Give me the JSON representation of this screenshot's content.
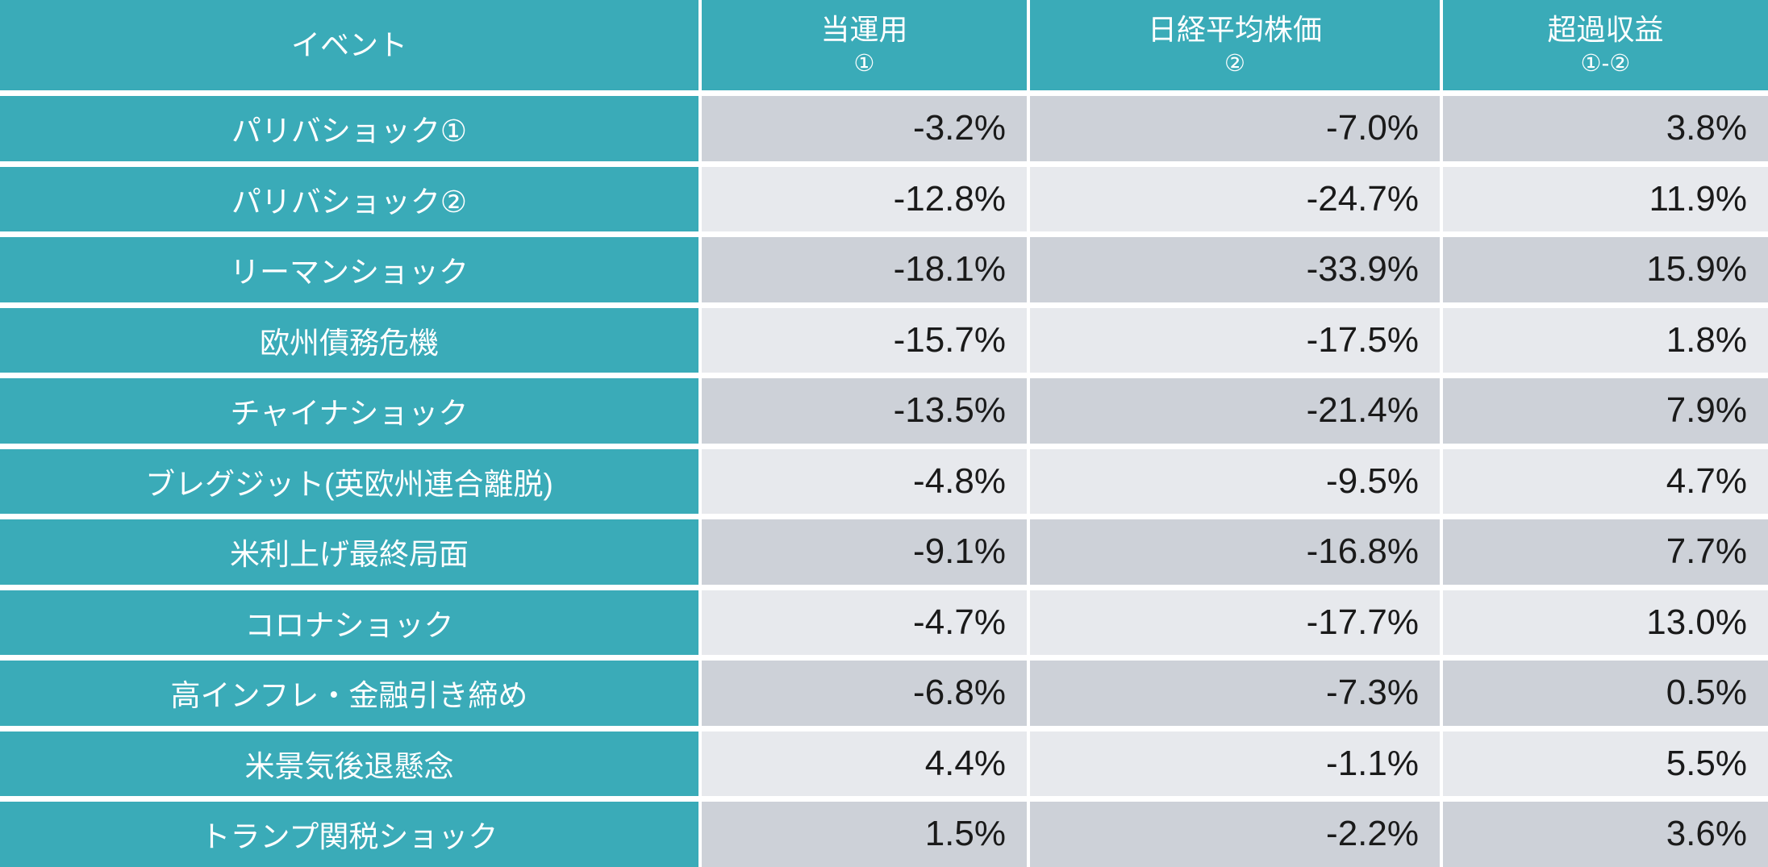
{
  "colors": {
    "teal": "#3AABB8",
    "row_dark": "#CDD1D8",
    "row_light": "#E7E9ED",
    "text_dark": "#1A1A1A",
    "text_white": "#FFFFFF",
    "gap_bg": "#FFFFFF"
  },
  "chart_data": {
    "type": "table",
    "columns": [
      {
        "label": "イベント",
        "sub": ""
      },
      {
        "label": "当運用",
        "sub": "①"
      },
      {
        "label": "日経平均株価",
        "sub": "②"
      },
      {
        "label": "超過収益",
        "sub": "①-②"
      }
    ],
    "rows": [
      {
        "event": "パリバショック①",
        "values": [
          "-3.2%",
          "-7.0%",
          "3.8%"
        ]
      },
      {
        "event": "パリバショック②",
        "values": [
          "-12.8%",
          "-24.7%",
          "11.9%"
        ]
      },
      {
        "event": "リーマンショック",
        "values": [
          "-18.1%",
          "-33.9%",
          "15.9%"
        ]
      },
      {
        "event": "欧州債務危機",
        "values": [
          "-15.7%",
          "-17.5%",
          "1.8%"
        ]
      },
      {
        "event": "チャイナショック",
        "values": [
          "-13.5%",
          "-21.4%",
          "7.9%"
        ]
      },
      {
        "event": "ブレグジット(英欧州連合離脱)",
        "values": [
          "-4.8%",
          "-9.5%",
          "4.7%"
        ]
      },
      {
        "event": "米利上げ最終局面",
        "values": [
          "-9.1%",
          "-16.8%",
          "7.7%"
        ]
      },
      {
        "event": "コロナショック",
        "values": [
          "-4.7%",
          "-17.7%",
          "13.0%"
        ]
      },
      {
        "event": "高インフレ・金融引き締め",
        "values": [
          "-6.8%",
          "-7.3%",
          "0.5%"
        ]
      },
      {
        "event": "米景気後退懸念",
        "values": [
          "4.4%",
          "-1.1%",
          "5.5%"
        ]
      },
      {
        "event": "トランプ関税ショック",
        "values": [
          "1.5%",
          "-2.2%",
          "3.6%"
        ]
      }
    ]
  }
}
